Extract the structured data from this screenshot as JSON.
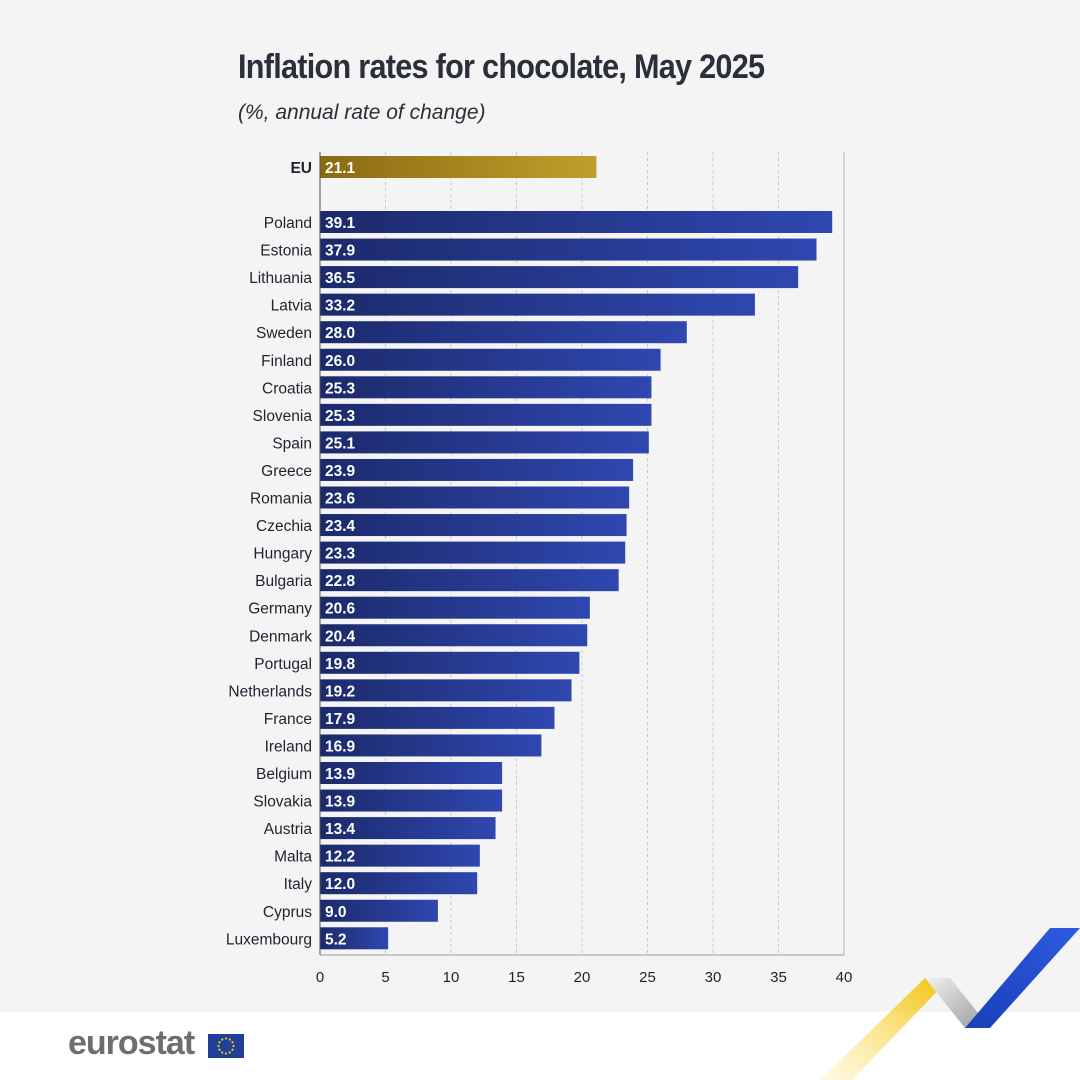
{
  "title": "Inflation rates for chocolate, May 2025",
  "subtitle": "(%, annual rate of change)",
  "chart_data": {
    "type": "bar",
    "orientation": "horizontal",
    "title": "Inflation rates for chocolate, May 2025",
    "subtitle": "(%, annual rate of change)",
    "xlim": [
      0,
      40
    ],
    "xticks": [
      0,
      5,
      10,
      15,
      20,
      25,
      30,
      35,
      40
    ],
    "grid": "vertical dashed",
    "highlight": {
      "category": "EU",
      "value": 21.1,
      "label": "21.1",
      "color": "#b08d1e"
    },
    "categories": [
      "Poland",
      "Estonia",
      "Lithuania",
      "Latvia",
      "Sweden",
      "Finland",
      "Croatia",
      "Slovenia",
      "Spain",
      "Greece",
      "Romania",
      "Czechia",
      "Hungary",
      "Bulgaria",
      "Germany",
      "Denmark",
      "Portugal",
      "Netherlands",
      "France",
      "Ireland",
      "Belgium",
      "Slovakia",
      "Austria",
      "Malta",
      "Italy",
      "Cyprus",
      "Luxembourg"
    ],
    "values": [
      39.1,
      37.9,
      36.5,
      33.2,
      28.0,
      26.0,
      25.3,
      25.3,
      25.1,
      23.9,
      23.6,
      23.4,
      23.3,
      22.8,
      20.6,
      20.4,
      19.8,
      19.2,
      17.9,
      16.9,
      13.9,
      13.9,
      13.4,
      12.2,
      12.0,
      9.0,
      5.2
    ],
    "labels": [
      "39.1",
      "37.9",
      "36.5",
      "33.2",
      "28.0",
      "26.0",
      "25.3",
      "25.3",
      "25.1",
      "23.9",
      "23.6",
      "23.4",
      "23.3",
      "22.8",
      "20.6",
      "20.4",
      "19.8",
      "19.2",
      "17.9",
      "16.9",
      "13.9",
      "13.9",
      "13.4",
      "12.2",
      "12.0",
      "9.0",
      "5.2"
    ],
    "bar_color": "#2b3f9e"
  },
  "footer": {
    "logo_text": "eurostat",
    "flag_icon": "eu-flag-icon",
    "ribbon_icon": "ribbon-decoration-icon"
  }
}
